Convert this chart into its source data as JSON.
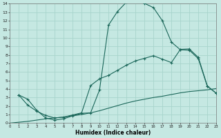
{
  "xlabel": "Humidex (Indice chaleur)",
  "xlim": [
    0,
    23
  ],
  "ylim": [
    0,
    14
  ],
  "xtick_labels": [
    "0",
    "1",
    "2",
    "3",
    "4",
    "5",
    "6",
    "7",
    "8",
    "9",
    "10",
    "11",
    "12",
    "13",
    "14",
    "15",
    "16",
    "17",
    "18",
    "19",
    "20",
    "21",
    "22",
    "23"
  ],
  "ytick_labels": [
    "0",
    "1",
    "2",
    "3",
    "4",
    "5",
    "6",
    "7",
    "8",
    "9",
    "10",
    "11",
    "12",
    "13",
    "14"
  ],
  "background_color": "#c5e8e2",
  "grid_color": "#a8d4cc",
  "line_color": "#1a6659",
  "curve1_x": [
    1,
    2,
    3,
    4,
    5,
    6,
    7,
    8,
    9,
    10,
    11,
    12,
    13,
    14,
    15,
    16,
    17,
    18,
    19,
    20,
    21,
    22,
    23
  ],
  "curve1_y": [
    3.3,
    2.8,
    1.5,
    0.6,
    0.35,
    0.5,
    0.85,
    1.15,
    1.2,
    3.9,
    11.5,
    13.1,
    14.2,
    14.45,
    14.05,
    13.55,
    12.0,
    9.5,
    8.6,
    8.55,
    7.55,
    4.3,
    3.5
  ],
  "curve2_x": [
    1,
    2,
    3,
    4,
    5,
    6,
    7,
    8,
    9,
    10,
    11,
    12,
    13,
    14,
    15,
    16,
    17,
    18,
    19,
    20,
    21,
    22,
    23
  ],
  "curve2_y": [
    3.3,
    2.1,
    1.4,
    0.9,
    0.6,
    0.7,
    0.95,
    1.2,
    4.4,
    5.2,
    5.6,
    6.2,
    6.8,
    7.3,
    7.6,
    7.9,
    7.5,
    7.1,
    8.65,
    8.7,
    7.7,
    4.35,
    3.5
  ],
  "curve3_x": [
    0,
    1,
    2,
    3,
    4,
    5,
    6,
    7,
    8,
    9,
    10,
    11,
    12,
    13,
    14,
    15,
    16,
    17,
    18,
    19,
    20,
    21,
    22,
    23
  ],
  "curve3_y": [
    0.0,
    0.1,
    0.2,
    0.35,
    0.5,
    0.6,
    0.7,
    0.85,
    1.0,
    1.2,
    1.45,
    1.75,
    2.05,
    2.35,
    2.6,
    2.8,
    3.0,
    3.15,
    3.35,
    3.55,
    3.7,
    3.8,
    3.9,
    4.05
  ]
}
